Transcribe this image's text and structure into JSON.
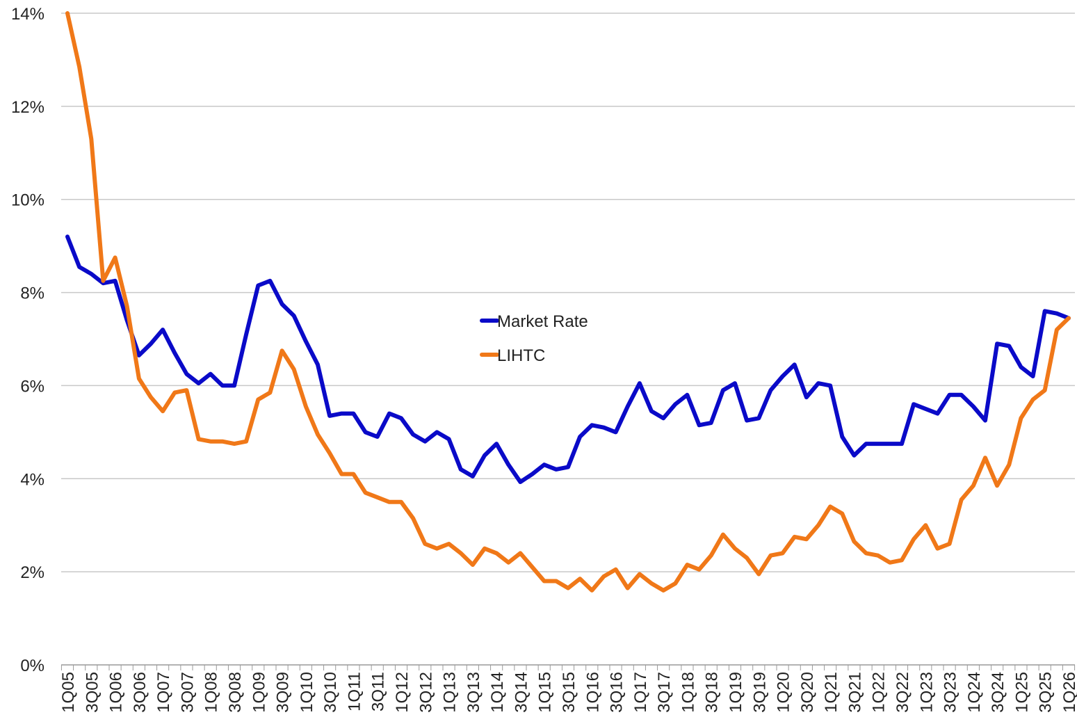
{
  "chart_data": {
    "type": "line",
    "categories": [
      "1Q05",
      null,
      "3Q05",
      null,
      "1Q06",
      null,
      "3Q06",
      null,
      "1Q07",
      null,
      "3Q07",
      null,
      "1Q08",
      null,
      "3Q08",
      null,
      "1Q09",
      null,
      "3Q09",
      null,
      "1Q10",
      null,
      "3Q10",
      null,
      "1Q11",
      null,
      "3Q11",
      null,
      "1Q12",
      null,
      "3Q12",
      null,
      "1Q13",
      null,
      "3Q13",
      null,
      "1Q14",
      null,
      "3Q14",
      null,
      "1Q15",
      null,
      "3Q15",
      null,
      "1Q16",
      null,
      "3Q16",
      null,
      "1Q17",
      null,
      "3Q17",
      null,
      "1Q18",
      null,
      "3Q18",
      null,
      "1Q19",
      null,
      "3Q19",
      null,
      "1Q20",
      null,
      "3Q20",
      null,
      "1Q21",
      null,
      "3Q21",
      null,
      "1Q22",
      null,
      "3Q22",
      null,
      "1Q23",
      null,
      "3Q23",
      null,
      "1Q24",
      null,
      "3Q24",
      null,
      "1Q25",
      null,
      "3Q25",
      null,
      "1Q26"
    ],
    "series": [
      {
        "name": "Market Rate",
        "color": "#0a0ac8",
        "values": [
          9.2,
          8.55,
          8.4,
          8.2,
          8.25,
          7.4,
          6.65,
          6.9,
          7.2,
          6.7,
          6.25,
          6.05,
          6.25,
          6.0,
          6.0,
          7.1,
          8.15,
          8.25,
          7.75,
          7.5,
          6.95,
          6.45,
          5.35,
          5.4,
          5.4,
          5.0,
          4.9,
          5.4,
          5.3,
          4.95,
          4.8,
          5.0,
          4.85,
          4.2,
          4.05,
          4.5,
          4.75,
          4.3,
          3.93,
          4.1,
          4.3,
          4.2,
          4.25,
          4.9,
          5.15,
          5.1,
          5.0,
          5.55,
          6.05,
          5.45,
          5.3,
          5.6,
          5.8,
          5.15,
          5.2,
          5.9,
          6.05,
          5.25,
          5.3,
          5.9,
          6.2,
          6.45,
          5.75,
          6.05,
          6.0,
          4.9,
          4.5,
          4.75,
          4.75,
          4.75,
          4.75,
          5.6,
          5.5,
          5.4,
          5.8,
          5.8,
          5.55,
          5.25,
          6.9,
          6.85,
          6.4,
          6.2,
          7.6,
          7.55,
          7.45
        ]
      },
      {
        "name": "LIHTC",
        "color": "#f07818",
        "values": [
          14.0,
          12.85,
          11.3,
          8.25,
          8.75,
          7.7,
          6.15,
          5.75,
          5.45,
          5.85,
          5.9,
          4.85,
          4.8,
          4.8,
          4.75,
          4.8,
          5.7,
          5.85,
          6.75,
          6.35,
          5.55,
          4.95,
          4.55,
          4.1,
          4.1,
          3.7,
          3.6,
          3.5,
          3.5,
          3.15,
          2.6,
          2.5,
          2.6,
          2.4,
          2.15,
          2.5,
          2.4,
          2.2,
          2.4,
          2.1,
          1.8,
          1.8,
          1.65,
          1.85,
          1.6,
          1.9,
          2.05,
          1.65,
          1.95,
          1.75,
          1.6,
          1.75,
          2.15,
          2.05,
          2.35,
          2.8,
          2.5,
          2.3,
          1.95,
          2.35,
          2.4,
          2.75,
          2.7,
          3.0,
          3.4,
          3.25,
          2.65,
          2.4,
          2.35,
          2.2,
          2.25,
          2.7,
          3.0,
          2.5,
          2.6,
          3.55,
          3.85,
          4.45,
          3.85,
          4.3,
          5.3,
          5.7,
          5.9,
          7.2,
          7.45
        ]
      }
    ],
    "ylim": [
      0,
      14
    ],
    "yticks": [
      {
        "value": 0,
        "label": "0%"
      },
      {
        "value": 2,
        "label": "2%"
      },
      {
        "value": 4,
        "label": "4%"
      },
      {
        "value": 6,
        "label": "6%"
      },
      {
        "value": 8,
        "label": "8%"
      },
      {
        "value": 10,
        "label": "10%"
      },
      {
        "value": 12,
        "label": "12%"
      },
      {
        "value": 14,
        "label": "14%"
      }
    ],
    "grid": true,
    "legend": "center"
  }
}
